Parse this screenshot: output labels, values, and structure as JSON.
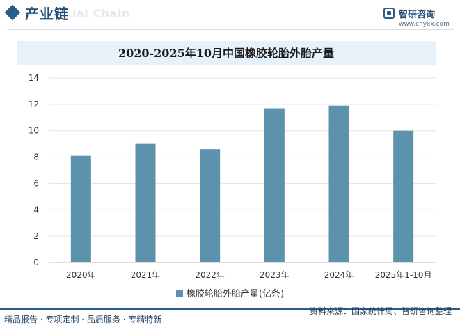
{
  "header": {
    "section_title": "产业链",
    "watermark_text": "ial Chain",
    "brand_name": "智研咨询",
    "brand_url": "www.chyxx.com"
  },
  "chart_data": {
    "type": "bar",
    "title": "2020-2025年10月中国橡胶轮胎外胎产量",
    "categories": [
      "2020年",
      "2021年",
      "2022年",
      "2023年",
      "2024年",
      "2025年1-10月"
    ],
    "series": [
      {
        "name": "橡胶轮胎外胎产量(亿条)",
        "values": [
          8.1,
          9.0,
          8.6,
          11.7,
          11.9,
          10.0
        ]
      }
    ],
    "ylim": [
      0,
      14
    ],
    "yticks": [
      0,
      2,
      4,
      6,
      8,
      10,
      12,
      14
    ],
    "grid": true,
    "legend_position": "bottom",
    "colors": {
      "bar": "#5c92ab"
    }
  },
  "footer": {
    "left": "精品报告 · 专项定制 · 品质服务 · 专精特新",
    "right": "资料来源：国家统计局、智研咨询整理"
  }
}
